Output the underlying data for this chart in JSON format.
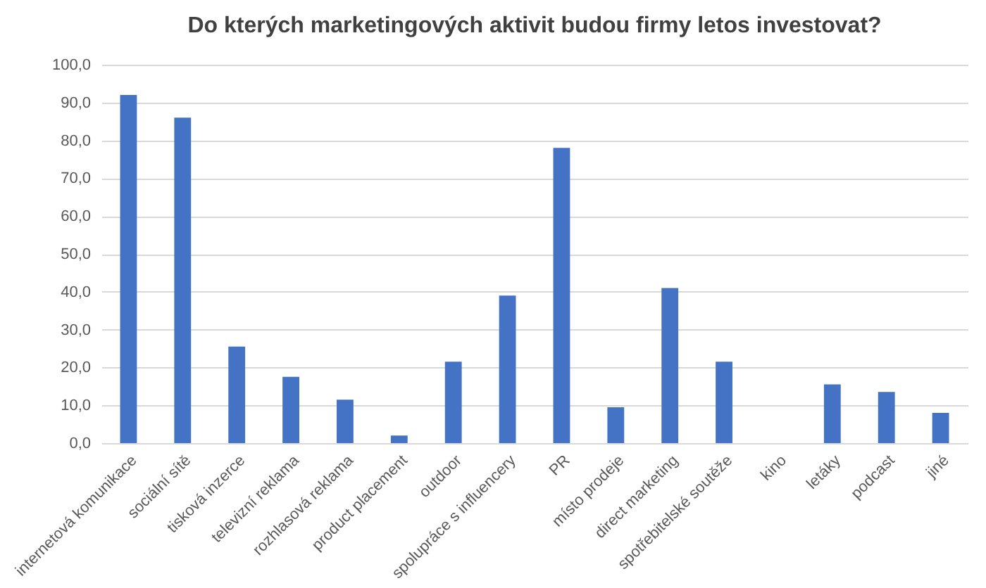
{
  "chart_data": {
    "type": "bar",
    "title": "Do kterých marketingových aktivit budou firmy letos investovat?",
    "categories": [
      "internetová komunikace",
      "sociální sítě",
      "tisková inzerce",
      "televizní reklama",
      "rozhlasová reklama",
      "product placement",
      "outdoor",
      "spolupráce s influencery",
      "PR",
      "místo prodeje",
      "direct marketing",
      "spotřebitelské soutěže",
      "kino",
      "letáky",
      "podcast",
      "jiné"
    ],
    "values": [
      92,
      86,
      25.5,
      17.5,
      11.5,
      2,
      21.5,
      39,
      78,
      9.5,
      41,
      21.5,
      0,
      15.5,
      13.5,
      8
    ],
    "color": "#4472c4",
    "ylim": [
      0,
      100
    ],
    "yticks": [
      {
        "value": 0,
        "label": "0,0"
      },
      {
        "value": 10,
        "label": "10,0"
      },
      {
        "value": 20,
        "label": "20,0"
      },
      {
        "value": 30,
        "label": "30,0"
      },
      {
        "value": 40,
        "label": "40,0"
      },
      {
        "value": 50,
        "label": "50,0"
      },
      {
        "value": 60,
        "label": "60,0"
      },
      {
        "value": 70,
        "label": "70,0"
      },
      {
        "value": 80,
        "label": "80,0"
      },
      {
        "value": 90,
        "label": "90,0"
      },
      {
        "value": 100,
        "label": "100,0"
      }
    ],
    "grid": "y"
  }
}
